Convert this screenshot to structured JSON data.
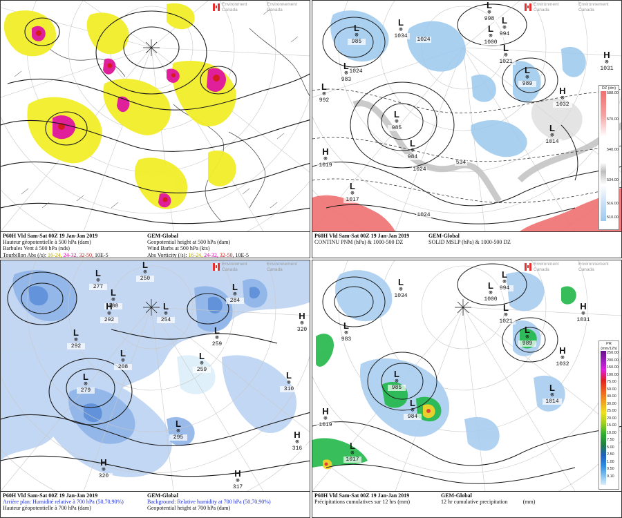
{
  "logo": {
    "line1": "Environment",
    "line2": "Canada",
    "line3": "Environnement",
    "line4": "Canada"
  },
  "colors": {
    "vorticity_low": "#f2ee2a",
    "vorticity_mid": "#e0209a",
    "vorticity_high": "#d41c1c",
    "thickness_warm": "#f07070",
    "thickness_cold": "#9cc8ee",
    "humidity_blue": "#8fb4e8",
    "precip_green": "#22b84a"
  },
  "panels": {
    "top_left": {
      "caption": {
        "left_line1": "P60H Vld Sam-Sat 00Z 19 Jan-Jan 2019",
        "left_line2": "Hauteur géopotentielle à 500 hPa (dam)",
        "left_line3": "Barbules Vent à 500 hPa (nds)",
        "left_line4_label": "Tourbillon Abs (/s):",
        "left_line4_k1": "16-24,",
        "left_line4_k2": "24-32,",
        "left_line4_k3": "32-50,",
        "left_line4_unit": "10E-5",
        "right_line1": "GEM-Global",
        "right_line2": "Geopotential height at 500 hPa (dam)",
        "right_line3": "Wind Barbs at 500 hPa (kts)",
        "right_line4_label": "Abs Vorticity (/s):",
        "right_line4_k1": "16-24,",
        "right_line4_k2": "24-32,",
        "right_line4_k3": "32-50,",
        "right_line4_unit": "10E-5"
      }
    },
    "top_right": {
      "caption": {
        "left_line1": "P60H Vld Sam-Sat 00Z 19 Jan-Jan 2019",
        "left_line2": "CONTINU PNM (hPa) & 1000-500 DZ",
        "right_line1": "GEM-Global",
        "right_line2": "SOLID MSLP (hPa) & 1000-500 DZ"
      },
      "colorbar": {
        "title": "DZ (dm)",
        "ticks": [
          "588.00",
          "570.00",
          "540.00",
          "534.00",
          "516.00",
          "510.00"
        ]
      },
      "symbols": [
        {
          "type": "L",
          "value": "985"
        },
        {
          "type": "L",
          "value": "1034"
        },
        {
          "type": "L",
          "value": "983"
        },
        {
          "type": "L",
          "value": "992"
        },
        {
          "type": "L",
          "value": "985"
        },
        {
          "type": "L",
          "value": "984"
        },
        {
          "type": "H",
          "value": "1019"
        },
        {
          "type": "L",
          "value": "1017"
        },
        {
          "type": "L",
          "value": "998"
        },
        {
          "type": "L",
          "value": "994"
        },
        {
          "type": "L",
          "value": "1000"
        },
        {
          "type": "L",
          "value": "1021"
        },
        {
          "type": "L",
          "value": "989"
        },
        {
          "type": "H",
          "value": "1031"
        },
        {
          "type": "H",
          "value": "1032"
        },
        {
          "type": "L",
          "value": "1014"
        }
      ],
      "isobar_labels": [
        "1024",
        "1024",
        "1024",
        "1024",
        "534"
      ]
    },
    "bottom_left": {
      "caption": {
        "left_line1": "P60H Vld Sam-Sat 00Z 19 Jan-Jan 2019",
        "left_line2": "Arrière plan: Humidité relative à 700 hPa (50,70,90%)",
        "left_line3": "Hauteur géopotentielle à 700 hPa (dam)",
        "right_line1": "GEM-Global",
        "right_line2": "Background: Relative humidity at 700 hPa (50,70,90%)",
        "right_line3": "Geopotential height at 700 hPa (dam)"
      },
      "symbols": [
        {
          "type": "L",
          "value": "277"
        },
        {
          "type": "L",
          "value": "250"
        },
        {
          "type": "L",
          "value": "284"
        },
        {
          "type": "L",
          "value": "280"
        },
        {
          "type": "L",
          "value": "292"
        },
        {
          "type": "L",
          "value": "259"
        },
        {
          "type": "L",
          "value": "208"
        },
        {
          "type": "L",
          "value": "254"
        },
        {
          "type": "L",
          "value": "259"
        },
        {
          "type": "H",
          "value": "292"
        },
        {
          "type": "L",
          "value": "279"
        },
        {
          "type": "H",
          "value": "320"
        },
        {
          "type": "L",
          "value": "310"
        },
        {
          "type": "L",
          "value": "295"
        },
        {
          "type": "H",
          "value": "316"
        },
        {
          "type": "H",
          "value": "320"
        },
        {
          "type": "H",
          "value": "317"
        }
      ]
    },
    "bottom_right": {
      "caption": {
        "left_line1": "P60H Vld Sam-Sat 00Z 19 Jan-Jan 2019",
        "left_line2": "Précipitations cumulatives sur 12 hrs (mm)",
        "right_line1": "GEM-Global",
        "right_line2": "12 hr cumulative precipitation",
        "right_line2_unit": "(mm)"
      },
      "colorbar": {
        "title": "PR (mm/12h)",
        "ticks": [
          "250.00",
          "200.00",
          "150.00",
          "100.00",
          "75.00",
          "50.00",
          "40.00",
          "30.00",
          "25.00",
          "20.00",
          "15.00",
          "10.00",
          "7.50",
          "5.00",
          "2.50",
          "1.00",
          "0.50",
          "0.10"
        ]
      },
      "symbols": [
        {
          "type": "L",
          "value": "1034"
        },
        {
          "type": "L",
          "value": "983"
        },
        {
          "type": "L",
          "value": "985"
        },
        {
          "type": "L",
          "value": "984"
        },
        {
          "type": "H",
          "value": "1019"
        },
        {
          "type": "L",
          "value": "1017"
        },
        {
          "type": "L",
          "value": "994"
        },
        {
          "type": "L",
          "value": "1000"
        },
        {
          "type": "L",
          "value": "1021"
        },
        {
          "type": "L",
          "value": "989"
        },
        {
          "type": "H",
          "value": "1032"
        },
        {
          "type": "H",
          "value": "1031"
        },
        {
          "type": "L",
          "value": "1014"
        }
      ]
    }
  }
}
